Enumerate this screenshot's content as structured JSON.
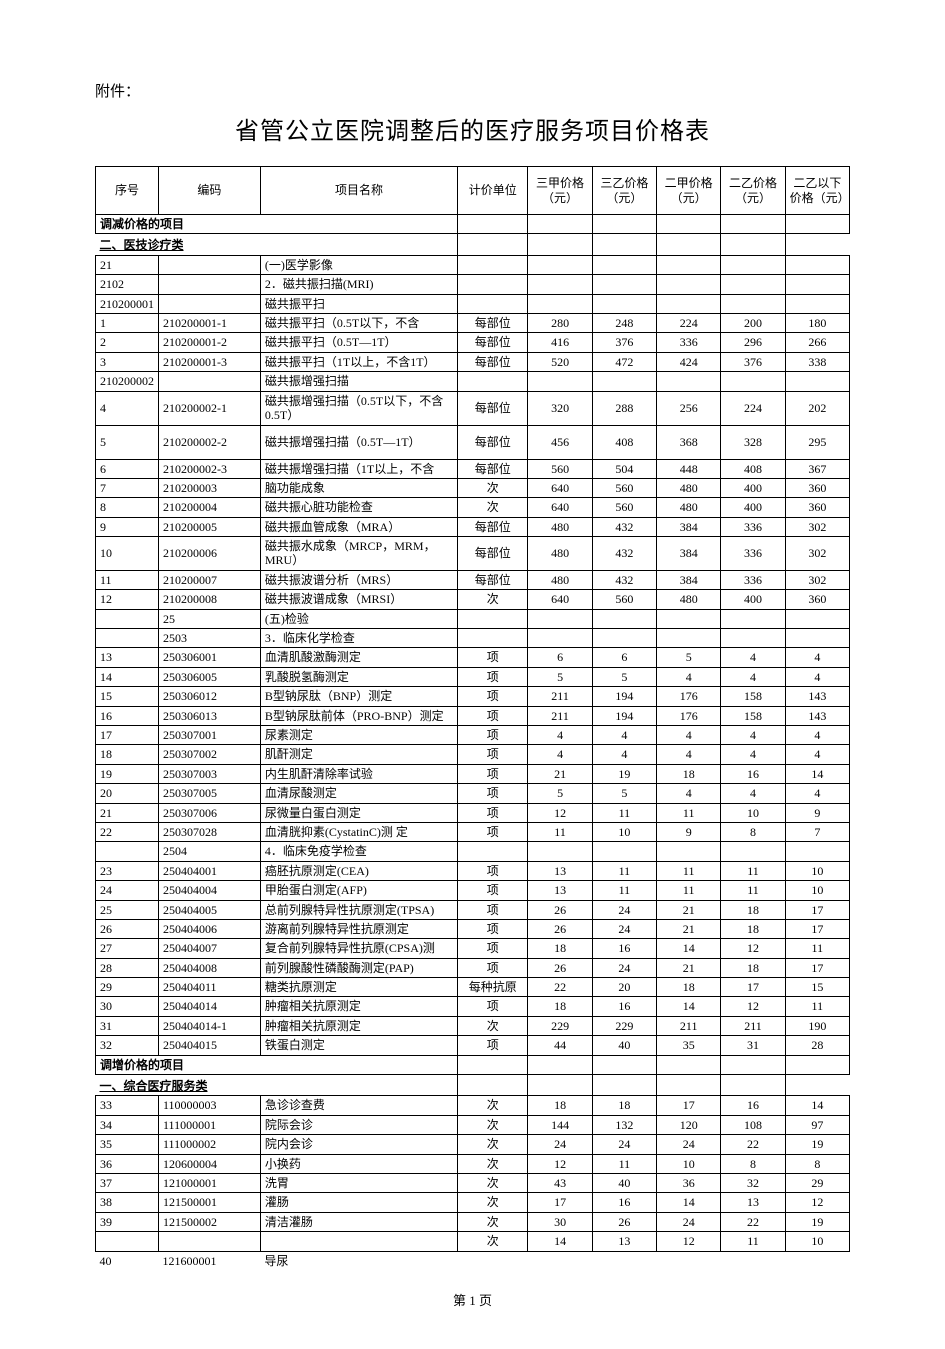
{
  "annex_label": "附件：",
  "title": "省管公立医院调整后的医疗服务项目价格表",
  "footer": "第 1 页",
  "columns": [
    "序号",
    "编码",
    "项目名称",
    "计价单位",
    "三甲价格（元）",
    "三乙价格（元）",
    "二甲价格（元）",
    "二乙价格（元）",
    "二乙以下价格（元）"
  ],
  "col_widths": [
    "4%",
    "14%",
    "28%",
    "10%",
    "8.8%",
    "8.8%",
    "8.8%",
    "8.8%",
    "8.8%"
  ],
  "font_sizes": {
    "title": 24,
    "annex": 15,
    "table": 12,
    "footer": 13
  },
  "colors": {
    "border": "#000000",
    "background": "#ffffff",
    "text": "#000000"
  },
  "rows": [
    {
      "type": "section_bold",
      "cells": [
        "调减价格的项目",
        "",
        "",
        "",
        "",
        "",
        "",
        "",
        ""
      ]
    },
    {
      "type": "section_underline",
      "cells": [
        "二、医技诊疗类",
        "",
        "",
        "",
        "",
        "",
        "",
        "",
        ""
      ]
    },
    {
      "type": "data",
      "cells": [
        "21",
        "",
        "(一)医学影像",
        "",
        "",
        "",
        "",
        "",
        ""
      ]
    },
    {
      "type": "data",
      "cells": [
        "2102",
        "",
        "2．磁共振扫描(MRI)",
        "",
        "",
        "",
        "",
        "",
        ""
      ]
    },
    {
      "type": "data",
      "cells": [
        "210200001",
        "",
        "磁共振平扫",
        "",
        "",
        "",
        "",
        "",
        ""
      ]
    },
    {
      "type": "data",
      "cells": [
        "1",
        "210200001-1",
        "磁共振平扫（0.5T以下，不含",
        "每部位",
        "280",
        "248",
        "224",
        "200",
        "180"
      ]
    },
    {
      "type": "data",
      "cells": [
        "2",
        "210200001-2",
        "磁共振平扫（0.5T—1T）",
        "每部位",
        "416",
        "376",
        "336",
        "296",
        "266"
      ]
    },
    {
      "type": "data",
      "cells": [
        "3",
        "210200001-3",
        "磁共振平扫（1T以上，不含1T）",
        "每部位",
        "520",
        "472",
        "424",
        "376",
        "338"
      ]
    },
    {
      "type": "data",
      "cells": [
        "210200002",
        "",
        "磁共振增强扫描",
        "",
        "",
        "",
        "",
        "",
        ""
      ]
    },
    {
      "type": "tall",
      "cells": [
        "4",
        "210200002-1",
        "磁共振增强扫描（0.5T以下，不含0.5T）",
        "每部位",
        "320",
        "288",
        "256",
        "224",
        "202"
      ]
    },
    {
      "type": "tall",
      "cells": [
        "5",
        "210200002-2",
        "磁共振增强扫描（0.5T—1T）",
        "每部位",
        "456",
        "408",
        "368",
        "328",
        "295"
      ]
    },
    {
      "type": "data",
      "cells": [
        "6",
        "210200002-3",
        "磁共振增强扫描（1T以上，不含",
        "每部位",
        "560",
        "504",
        "448",
        "408",
        "367"
      ]
    },
    {
      "type": "data",
      "cells": [
        "7",
        "210200003",
        "脑功能成象",
        "次",
        "640",
        "560",
        "480",
        "400",
        "360"
      ]
    },
    {
      "type": "data",
      "cells": [
        "8",
        "210200004",
        "磁共振心脏功能检查",
        "次",
        "640",
        "560",
        "480",
        "400",
        "360"
      ]
    },
    {
      "type": "data",
      "cells": [
        "9",
        "210200005",
        "磁共振血管成象（MRA）",
        "每部位",
        "480",
        "432",
        "384",
        "336",
        "302"
      ]
    },
    {
      "type": "data",
      "cells": [
        "10",
        "210200006",
        "磁共振水成象（MRCP，MRM，MRU）",
        "每部位",
        "480",
        "432",
        "384",
        "336",
        "302"
      ]
    },
    {
      "type": "data",
      "cells": [
        "11",
        "210200007",
        "磁共振波谱分析（MRS）",
        "每部位",
        "480",
        "432",
        "384",
        "336",
        "302"
      ]
    },
    {
      "type": "data",
      "cells": [
        "12",
        "210200008",
        "磁共振波谱成象（MRSI）",
        "次",
        "640",
        "560",
        "480",
        "400",
        "360"
      ]
    },
    {
      "type": "data",
      "cells": [
        "",
        "25",
        "(五)检验",
        "",
        "",
        "",
        "",
        "",
        ""
      ]
    },
    {
      "type": "data",
      "cells": [
        "",
        "2503",
        "3．临床化学检查",
        "",
        "",
        "",
        "",
        "",
        ""
      ]
    },
    {
      "type": "data",
      "cells": [
        "13",
        "250306001",
        "血清肌酸激酶测定",
        "项",
        "6",
        "6",
        "5",
        "4",
        "4"
      ]
    },
    {
      "type": "data",
      "cells": [
        "14",
        "250306005",
        "乳酸脱氢酶测定",
        "项",
        "5",
        "5",
        "4",
        "4",
        "4"
      ]
    },
    {
      "type": "data",
      "cells": [
        "15",
        "250306012",
        "B型钠尿肽（BNP）测定",
        "项",
        "211",
        "194",
        "176",
        "158",
        "143"
      ]
    },
    {
      "type": "data",
      "cells": [
        "16",
        "250306013",
        "B型钠尿肽前体（PRO-BNP）测定",
        "项",
        "211",
        "194",
        "176",
        "158",
        "143"
      ]
    },
    {
      "type": "data",
      "cells": [
        "17",
        "250307001",
        "尿素测定",
        "项",
        "4",
        "4",
        "4",
        "4",
        "4"
      ]
    },
    {
      "type": "data",
      "cells": [
        "18",
        "250307002",
        "肌酐测定",
        "项",
        "4",
        "4",
        "4",
        "4",
        "4"
      ]
    },
    {
      "type": "data",
      "cells": [
        "19",
        "250307003",
        "内生肌酐清除率试验",
        "项",
        "21",
        "19",
        "18",
        "16",
        "14"
      ]
    },
    {
      "type": "data",
      "cells": [
        "20",
        "250307005",
        "血清尿酸测定",
        "项",
        "5",
        "5",
        "4",
        "4",
        "4"
      ]
    },
    {
      "type": "data",
      "cells": [
        "21",
        "250307006",
        "尿微量白蛋白测定",
        "项",
        "12",
        "11",
        "11",
        "10",
        "9"
      ]
    },
    {
      "type": "data",
      "cells": [
        "22",
        "250307028",
        "血清胱抑素(CystatinC)测 定",
        "项",
        "11",
        "10",
        "9",
        "8",
        "7"
      ]
    },
    {
      "type": "data",
      "cells": [
        "",
        "2504",
        "4．临床免疫学检查",
        "",
        "",
        "",
        "",
        "",
        ""
      ]
    },
    {
      "type": "data",
      "cells": [
        "23",
        "250404001",
        "癌胚抗原测定(CEA)",
        "项",
        "13",
        "11",
        "11",
        "11",
        "10"
      ]
    },
    {
      "type": "data",
      "cells": [
        "24",
        "250404004",
        "甲胎蛋白测定(AFP)",
        "项",
        "13",
        "11",
        "11",
        "11",
        "10"
      ]
    },
    {
      "type": "data",
      "cells": [
        "25",
        "250404005",
        "总前列腺特异性抗原测定(TPSA)",
        "项",
        "26",
        "24",
        "21",
        "18",
        "17"
      ]
    },
    {
      "type": "data",
      "cells": [
        "26",
        "250404006",
        "游离前列腺特异性抗原测定",
        "项",
        "26",
        "24",
        "21",
        "18",
        "17"
      ]
    },
    {
      "type": "data",
      "cells": [
        "27",
        "250404007",
        "复合前列腺特异性抗原(CPSA)测",
        "项",
        "18",
        "16",
        "14",
        "12",
        "11"
      ]
    },
    {
      "type": "data",
      "cells": [
        "28",
        "250404008",
        "前列腺酸性磷酸酶测定(PAP)",
        "项",
        "26",
        "24",
        "21",
        "18",
        "17"
      ]
    },
    {
      "type": "data",
      "cells": [
        "29",
        "250404011",
        "糖类抗原测定",
        "每种抗原",
        "22",
        "20",
        "18",
        "17",
        "15"
      ]
    },
    {
      "type": "data",
      "cells": [
        "30",
        "250404014",
        "肿瘤相关抗原测定",
        "项",
        "18",
        "16",
        "14",
        "12",
        "11"
      ]
    },
    {
      "type": "data",
      "cells": [
        "31",
        "250404014-1",
        "肿瘤相关抗原测定",
        "次",
        "229",
        "229",
        "211",
        "211",
        "190"
      ]
    },
    {
      "type": "data",
      "cells": [
        "32",
        "250404015",
        "铁蛋白测定",
        "项",
        "44",
        "40",
        "35",
        "31",
        "28"
      ]
    },
    {
      "type": "section_bold",
      "cells": [
        "调增价格的项目",
        "",
        "",
        "",
        "",
        "",
        "",
        "",
        ""
      ]
    },
    {
      "type": "section_underline",
      "cells": [
        "一、综合医疗服务类",
        "",
        "",
        "",
        "",
        "",
        "",
        "",
        ""
      ]
    },
    {
      "type": "data",
      "cells": [
        "33",
        "110000003",
        "急诊诊查费",
        "次",
        "18",
        "18",
        "17",
        "16",
        "14"
      ]
    },
    {
      "type": "data",
      "cells": [
        "34",
        "111000001",
        "院际会诊",
        "次",
        "144",
        "132",
        "120",
        "108",
        "97"
      ]
    },
    {
      "type": "data",
      "cells": [
        "35",
        "111000002",
        "院内会诊",
        "次",
        "24",
        "24",
        "24",
        "22",
        "19"
      ]
    },
    {
      "type": "data",
      "cells": [
        "36",
        "120600004",
        "小换药",
        "次",
        "12",
        "11",
        "10",
        "8",
        "8"
      ]
    },
    {
      "type": "data",
      "cells": [
        "37",
        "121000001",
        "洗胃",
        "次",
        "43",
        "40",
        "36",
        "32",
        "29"
      ]
    },
    {
      "type": "data",
      "cells": [
        "38",
        "121500001",
        "灌肠",
        "次",
        "17",
        "16",
        "14",
        "13",
        "12"
      ]
    },
    {
      "type": "data",
      "cells": [
        "39",
        "121500002",
        "清洁灌肠",
        "次",
        "30",
        "26",
        "24",
        "22",
        "19"
      ]
    },
    {
      "type": "data",
      "cells": [
        "",
        "",
        "",
        "次",
        "14",
        "13",
        "12",
        "11",
        "10"
      ]
    },
    {
      "type": "noborder",
      "cells": [
        "40",
        "121600001",
        "导尿",
        "",
        "",
        "",
        "",
        "",
        ""
      ]
    }
  ]
}
